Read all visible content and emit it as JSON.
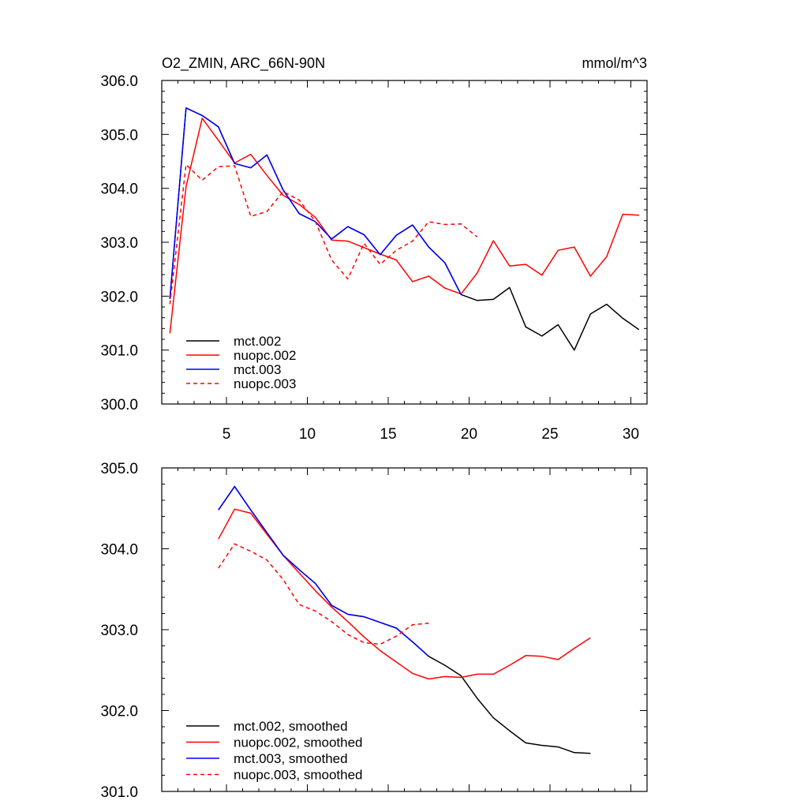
{
  "chart_data": [
    {
      "type": "line",
      "title": "O2_ZMIN, ARC_66N-90N",
      "units": "mmol/m^3",
      "xlim": [
        1,
        31
      ],
      "ylim": [
        300.0,
        306.0
      ],
      "xticks": [
        5,
        10,
        15,
        20,
        25,
        30
      ],
      "yticks": [
        300.0,
        301.0,
        302.0,
        303.0,
        304.0,
        305.0,
        306.0
      ],
      "xtick_labels": [
        "5",
        "10",
        "15",
        "20",
        "25",
        "30"
      ],
      "ytick_labels": [
        "300.0",
        "301.0",
        "302.0",
        "303.0",
        "304.0",
        "305.0",
        "306.0"
      ],
      "legend_position": "bottom-left",
      "series": [
        {
          "name": "mct.002",
          "color": "#000000",
          "dash": "solid",
          "x": [
            1.5,
            2.5,
            3.5,
            4.5,
            5.5,
            6.5,
            7.5,
            8.5,
            9.5,
            10.5,
            11.5,
            12.5,
            13.5,
            14.5,
            15.5,
            16.5,
            17.5,
            18.5,
            19.5,
            20.5,
            21.5,
            22.5,
            23.5,
            24.5,
            25.5,
            26.5,
            27.5,
            28.5,
            29.5,
            30.5
          ],
          "y": [
            301.95,
            305.49,
            305.35,
            305.14,
            304.46,
            304.38,
            304.62,
            303.97,
            303.53,
            303.38,
            303.06,
            303.29,
            303.14,
            302.77,
            303.13,
            303.32,
            302.91,
            302.62,
            302.03,
            301.92,
            301.94,
            302.16,
            301.43,
            301.26,
            301.47,
            301.0,
            301.67,
            301.85,
            301.59,
            301.38
          ]
        },
        {
          "name": "nuopc.002",
          "color": "#ff0000",
          "dash": "solid",
          "x": [
            1.5,
            2.5,
            3.5,
            4.5,
            5.5,
            6.5,
            7.5,
            8.5,
            9.5,
            10.5,
            11.5,
            12.5,
            13.5,
            14.5,
            15.5,
            16.5,
            17.5,
            18.5,
            19.5,
            20.5,
            21.5,
            22.5,
            23.5,
            24.5,
            25.5,
            26.5,
            27.5,
            28.5,
            29.5,
            30.5
          ],
          "y": [
            301.31,
            304.03,
            305.3,
            304.89,
            304.47,
            304.63,
            304.24,
            303.87,
            303.7,
            303.46,
            303.04,
            303.02,
            302.9,
            302.78,
            302.67,
            302.27,
            302.37,
            302.15,
            302.04,
            302.43,
            303.03,
            302.56,
            302.59,
            302.39,
            302.85,
            302.91,
            302.37,
            302.73,
            303.52,
            303.5
          ]
        },
        {
          "name": "mct.003",
          "color": "#0000ff",
          "dash": "solid",
          "x": [
            1.5,
            2.5,
            3.5,
            4.5,
            5.5,
            6.5,
            7.5,
            8.5,
            9.5,
            10.5,
            11.5,
            12.5,
            13.5,
            14.5,
            15.5,
            16.5,
            17.5,
            18.5,
            19.5
          ],
          "y": [
            301.95,
            305.49,
            305.35,
            305.14,
            304.46,
            304.38,
            304.62,
            303.97,
            303.53,
            303.38,
            303.06,
            303.29,
            303.14,
            302.77,
            303.13,
            303.32,
            302.91,
            302.62,
            302.03
          ]
        },
        {
          "name": "nuopc.003",
          "color": "#ff0000",
          "dash": "dashed",
          "x": [
            1.5,
            2.5,
            3.5,
            4.5,
            5.5,
            6.5,
            7.5,
            8.5,
            9.5,
            10.5,
            11.5,
            12.5,
            13.5,
            14.5,
            15.5,
            16.5,
            17.5,
            18.5,
            19.5,
            20.5
          ],
          "y": [
            301.85,
            304.44,
            304.15,
            304.4,
            304.42,
            303.48,
            303.57,
            303.94,
            303.78,
            303.38,
            302.67,
            302.32,
            302.98,
            302.59,
            302.85,
            303.02,
            303.38,
            303.33,
            303.34,
            303.1
          ]
        }
      ]
    },
    {
      "type": "line",
      "xlim": [
        1,
        31
      ],
      "ylim": [
        301.0,
        305.0
      ],
      "xticks": [
        5,
        10,
        15,
        20,
        25,
        30
      ],
      "yticks": [
        301.0,
        302.0,
        303.0,
        304.0,
        305.0
      ],
      "ytick_labels": [
        "301.0",
        "302.0",
        "303.0",
        "304.0",
        "305.0"
      ],
      "legend_position": "bottom-left",
      "series": [
        {
          "name": "mct.002, smoothed",
          "color": "#000000",
          "dash": "solid",
          "x": [
            4.5,
            5.5,
            6.5,
            7.5,
            8.5,
            9.5,
            10.5,
            11.5,
            12.5,
            13.5,
            14.5,
            15.5,
            16.5,
            17.5,
            18.5,
            19.5,
            20.5,
            21.5,
            22.5,
            23.5,
            24.5,
            25.5,
            26.5,
            27.5
          ],
          "y": [
            304.48,
            304.77,
            304.48,
            304.2,
            303.92,
            303.74,
            303.57,
            303.3,
            303.19,
            303.16,
            303.09,
            303.02,
            302.85,
            302.67,
            302.56,
            302.43,
            302.15,
            301.91,
            301.75,
            301.6,
            301.57,
            301.55,
            301.48,
            301.47
          ]
        },
        {
          "name": "nuopc.002, smoothed",
          "color": "#ff0000",
          "dash": "solid",
          "x": [
            4.5,
            5.5,
            6.5,
            7.5,
            8.5,
            9.5,
            10.5,
            11.5,
            12.5,
            13.5,
            14.5,
            15.5,
            16.5,
            17.5,
            18.5,
            19.5,
            20.5,
            21.5,
            22.5,
            23.5,
            24.5,
            25.5,
            26.5,
            27.5
          ],
          "y": [
            304.12,
            304.49,
            304.44,
            304.18,
            303.92,
            303.7,
            303.48,
            303.28,
            303.1,
            302.91,
            302.74,
            302.6,
            302.46,
            302.39,
            302.42,
            302.41,
            302.45,
            302.45,
            302.56,
            302.68,
            302.67,
            302.63,
            302.77,
            302.9
          ]
        },
        {
          "name": "mct.003, smoothed",
          "color": "#0000ff",
          "dash": "solid",
          "x": [
            4.5,
            5.5,
            6.5,
            7.5,
            8.5,
            9.5,
            10.5,
            11.5,
            12.5,
            13.5,
            14.5,
            15.5,
            16.5,
            17.5
          ],
          "y": [
            304.48,
            304.77,
            304.48,
            304.2,
            303.92,
            303.74,
            303.57,
            303.3,
            303.19,
            303.16,
            303.09,
            303.02,
            302.85,
            302.67
          ]
        },
        {
          "name": "nuopc.003, smoothed",
          "color": "#ff0000",
          "dash": "dashed",
          "x": [
            4.5,
            5.5,
            6.5,
            7.5,
            8.5,
            9.5,
            10.5,
            11.5,
            12.5,
            13.5,
            14.5,
            15.5,
            16.5,
            17.5
          ],
          "y": [
            303.76,
            304.06,
            303.97,
            303.86,
            303.62,
            303.31,
            303.23,
            303.1,
            302.94,
            302.84,
            302.82,
            302.92,
            303.06,
            303.08
          ]
        }
      ]
    }
  ]
}
